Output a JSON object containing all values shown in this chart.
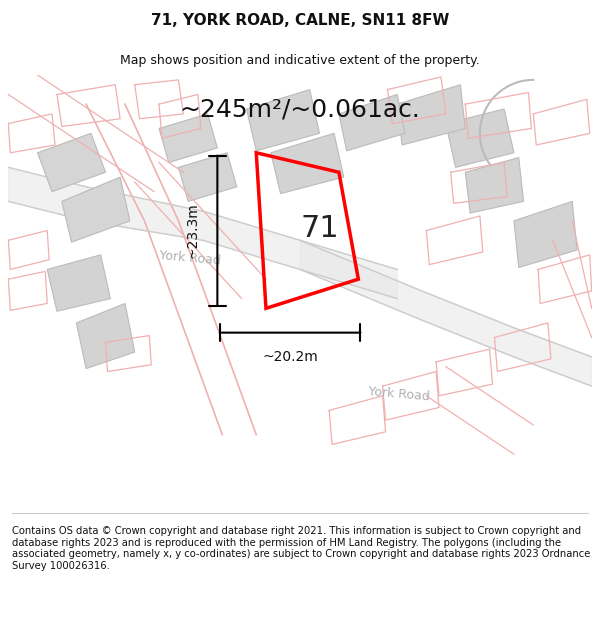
{
  "title": "71, YORK ROAD, CALNE, SN11 8FW",
  "subtitle": "Map shows position and indicative extent of the property.",
  "area_text": "~245m²/~0.061ac.",
  "plot_number": "71",
  "dim_width": "~20.2m",
  "dim_height": "~23.3m",
  "footer_text": "Contains OS data © Crown copyright and database right 2021. This information is subject to Crown copyright and database rights 2023 and is reproduced with the permission of HM Land Registry. The polygons (including the associated geometry, namely x, y co-ordinates) are subject to Crown copyright and database rights 2023 Ordnance Survey 100026316.",
  "bg_color": "#f5f5f5",
  "map_bg": "#f0efef",
  "building_color": "#d9d9d9",
  "road_outline_color": "#cccccc",
  "road_text_color": "#aaaaaa",
  "plot_color": "red",
  "dim_color": "#111111",
  "title_color": "#111111",
  "footer_color": "#111111",
  "road_pink": "#f0b0b0",
  "road_pink2": "#e8a0a0"
}
